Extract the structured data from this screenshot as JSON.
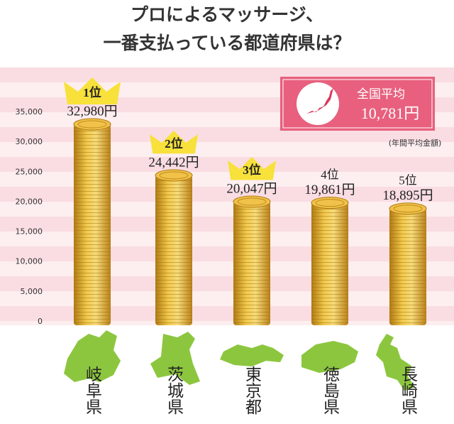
{
  "chart_data": {
    "type": "bar",
    "title": [
      "プロによるマッサージ、",
      "一番支払っている都道府県は？"
    ],
    "categories": [
      "岐阜県",
      "茨城県",
      "東京都",
      "徳島県",
      "長崎県"
    ],
    "ranks": [
      "1位",
      "2位",
      "3位",
      "4位",
      "5位"
    ],
    "values": [
      32980,
      24442,
      20047,
      19861,
      18895
    ],
    "value_labels": [
      "32,980円",
      "24,442円",
      "20,047円",
      "19,861円",
      "18,895円"
    ],
    "ylim": [
      0,
      35000
    ],
    "yticks": [
      0,
      {
        "value": 5000,
        "label": "5,000"
      },
      {
        "value": 10000,
        "label": "10,000"
      },
      {
        "value": 15000,
        "label": "15,000"
      },
      {
        "value": 20000,
        "label": "20,000"
      },
      {
        "value": 25000,
        "label": "25,000"
      },
      {
        "value": 30000,
        "label": "30,000"
      },
      {
        "value": 35000,
        "label": "35,000"
      }
    ],
    "average": {
      "label": "全国平均",
      "value_label": "10,781円",
      "note": "(年間平均金額)"
    }
  }
}
